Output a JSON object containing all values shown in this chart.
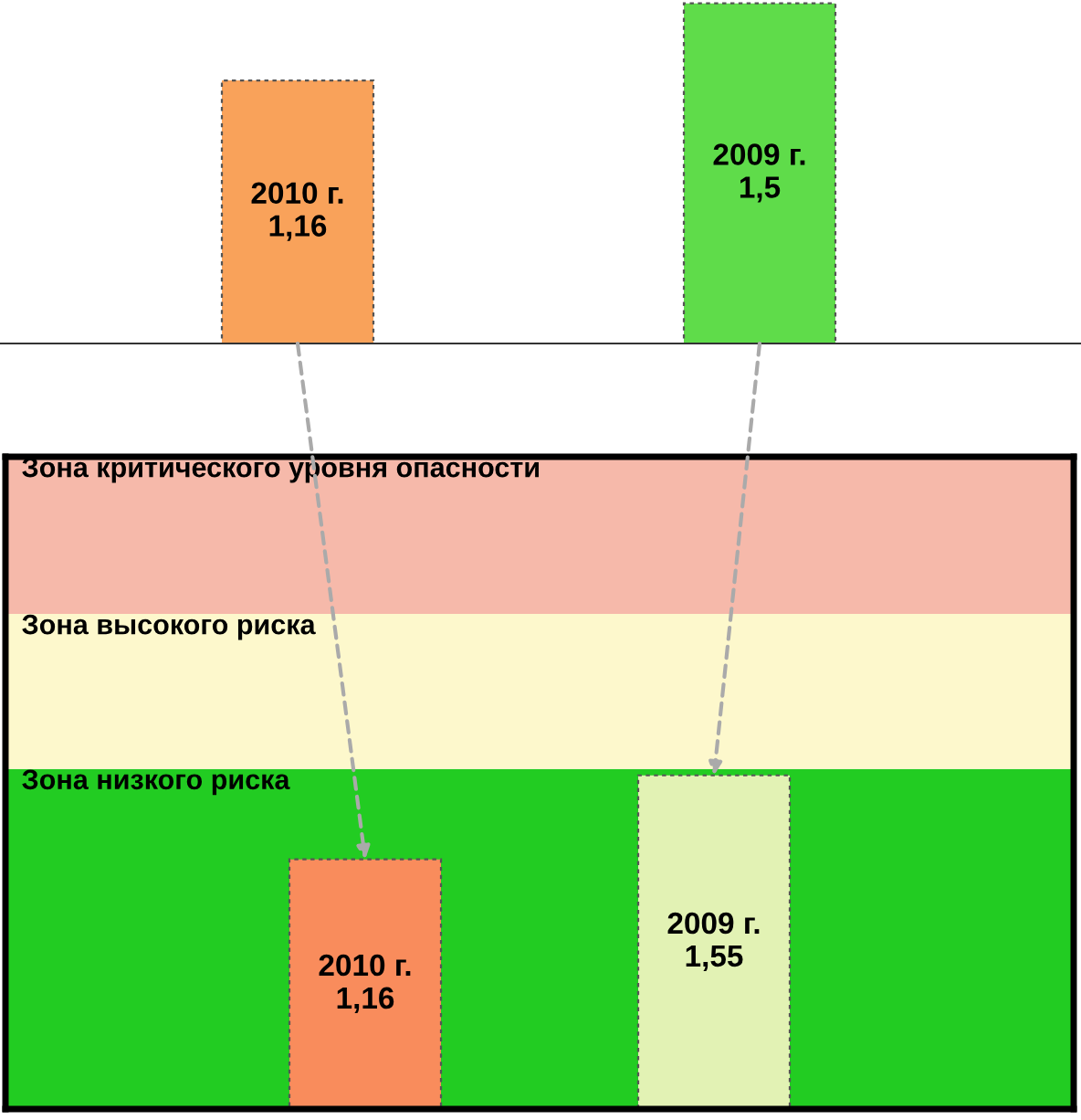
{
  "chart_data": [
    {
      "type": "bar",
      "categories": [
        "2010 г.",
        "2009 г."
      ],
      "values": [
        1.16,
        1.5
      ],
      "value_labels": [
        "1,16",
        "1,5"
      ],
      "colors": [
        "#f9a25a",
        "#5fdc4a"
      ]
    },
    {
      "type": "bar",
      "categories": [
        "2010 г.",
        "2009 г."
      ],
      "values": [
        1.16,
        1.55
      ],
      "value_labels": [
        "1,16",
        "1,55"
      ],
      "colors": [
        "#f98c5c",
        "#e2f2b4"
      ],
      "bands": [
        {
          "axis": "y",
          "from": 0,
          "to": 1.58,
          "label": "Зона низкого риска",
          "color": "#22cc22"
        },
        {
          "axis": "y",
          "from": 1.58,
          "to": 2.3,
          "label": "Зона высокого риска",
          "color": "#fdf8cc"
        },
        {
          "axis": "y",
          "from": 2.3,
          "to": 3.03,
          "label": "Зона критического уровня опасности",
          "color": "#f6b9aa"
        }
      ]
    }
  ]
}
